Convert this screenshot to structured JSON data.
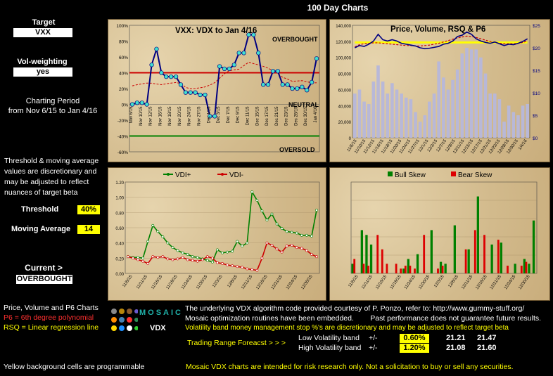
{
  "page_title": "100 Day Charts",
  "sidebar": {
    "target_label": "Target",
    "target_value": "VXX",
    "vw_label": "Vol-weighting",
    "vw_value": "yes",
    "period_title": "Charting Period",
    "period_range": "from Nov 6/15 to Jan 4/16",
    "threshold_note": "Threshold & moving average values are discretionary and may be adjusted to reflect nuances of target beta",
    "threshold_label": "Threshold",
    "threshold_value": "40%",
    "ma_label": "Moving Average",
    "ma_value": "14",
    "current_label": "Current >",
    "current_value": "OVERBOUGHT",
    "legend_line1": "Price, Volume and P6 Charts",
    "legend_line2": "P6 = 6th degree polynomial",
    "legend_line3": "RSQ = Linear regression line",
    "yellow_note": "Yellow background cells are programmable"
  },
  "logo": {
    "word": "MOSAIC",
    "sub": "VDX"
  },
  "footer": {
    "line1": "The underlying VDX algorithm code provided courtesy of P. Ponzo, refer to:  http://www.gummy-stuff.org/",
    "line2": "Mosaic optimization routines have been embedded.        Past performance does not guarantee future results.",
    "line3": "Volatility band money management stop %'s are discretionary and may be adjusted to reflect target beta",
    "forecast_label": "Trading Range Foreacst > > >",
    "low_label": "Low Volatility band",
    "low_pm": "+/-",
    "low_pct": "0.60%",
    "low_a": "21.21",
    "low_b": "21.47",
    "high_label": "High Volatility band",
    "high_pm": "+/-",
    "high_pct": "1.20%",
    "high_a": "21.08",
    "high_b": "21.60",
    "disclaimer": "Mosaic VDX charts are intended for risk research only.  Not a solicitation to buy or sell any securities."
  },
  "colors": {
    "accent": "#ffff00",
    "red": "#cc0000",
    "green": "#008000",
    "navy": "#000080"
  },
  "chart_data": [
    {
      "type": "line",
      "title": "VXX:   VDX to Jan 4/16",
      "annotations": [
        "OVERBOUGHT",
        "NEUTRAL",
        "OVERSOLD"
      ],
      "ylim": [
        -60,
        100
      ],
      "yticks": [
        "100%",
        "80%",
        "60%",
        "40%",
        "20%",
        "0%",
        "-20%",
        "-40%",
        "-60%"
      ],
      "xticks": [
        "Nov 6/15",
        "Nov 10/15",
        "Nov 12/15",
        "Nov 16/15",
        "Nov 18/15",
        "Nov 20/15",
        "Nov 24/15",
        "Nov 27/15",
        "Dec 1/15",
        "Dec 3/15",
        "Dec 7/15",
        "Dec 9/15",
        "Dec 11/15",
        "Dec 15/15",
        "Dec 17/15",
        "Dec 21/15",
        "Dec 23/15",
        "Dec 28/15",
        "Dec 30/15",
        "Jan 4/16"
      ],
      "series": [
        {
          "name": "VDX",
          "values": [
            0,
            2,
            2,
            0,
            50,
            70,
            40,
            35,
            35,
            35,
            25,
            15,
            15,
            15,
            12,
            12,
            -15,
            -15,
            48,
            45,
            45,
            50,
            65,
            65,
            88,
            88,
            65,
            25,
            25,
            42,
            42,
            25,
            25,
            20,
            20,
            22,
            18,
            28,
            58
          ]
        }
      ],
      "threshold_lines": [
        40,
        -40
      ]
    },
    {
      "type": "bar",
      "title": "Price, Volume, RSQ & P6",
      "left_ticks": [
        "140,000",
        "120,000",
        "100,000",
        "80,000",
        "60,000",
        "40,000",
        "20,000",
        "0"
      ],
      "right_ticks": [
        "$25",
        "$20",
        "$15",
        "$10",
        "$5",
        "$0"
      ],
      "xticks": [
        "11/6/15",
        "11/10/15",
        "11/12/15",
        "11/16/15",
        "11/18/15",
        "11/20/15",
        "11/24/15",
        "11/27/15",
        "12/1/15",
        "12/3/15",
        "12/7/15",
        "12/9/15",
        "12/11/15",
        "12/15/15",
        "12/17/15",
        "12/21/15",
        "12/23/15",
        "12/28/15",
        "12/30/15",
        "1/4/16"
      ],
      "volume": [
        55000,
        60000,
        45000,
        42000,
        70000,
        90000,
        70000,
        55000,
        68000,
        60000,
        55000,
        50000,
        48000,
        32000,
        20000,
        28000,
        45000,
        55000,
        95000,
        75000,
        60000,
        72000,
        85000,
        105000,
        112000,
        110000,
        110000,
        100000,
        80000,
        55000,
        55000,
        48000,
        20000,
        40000,
        32000,
        28000,
        40000,
        42000
      ],
      "price": [
        20.0,
        20.5,
        20.3,
        20.8,
        21.5,
        23.0,
        21.8,
        21.5,
        21.8,
        21.5,
        21.0,
        20.8,
        20.6,
        20.4,
        20.0,
        19.8,
        19.9,
        20.1,
        20.3,
        20.8,
        21.0,
        21.5,
        22.5,
        22.8,
        23.5,
        23.0,
        22.0,
        21.5,
        21.2,
        21.0,
        21.3,
        20.9,
        20.5,
        20.8,
        20.7,
        21.0,
        21.4,
        22.0
      ],
      "p6": [
        20.2,
        20.7,
        20.9,
        21.0,
        21.1,
        21.1,
        21.0,
        20.9,
        20.8,
        20.7,
        20.6,
        20.5,
        20.5,
        20.4,
        20.4,
        20.5,
        20.6,
        20.8,
        21.0,
        21.3,
        21.6,
        21.9,
        22.2,
        22.4,
        22.6,
        22.5,
        22.3,
        22.0,
        21.7,
        21.4,
        21.2,
        21.0,
        20.9,
        20.9,
        20.9,
        21.0,
        21.2,
        21.5
      ],
      "rsq": [
        21.2,
        21.2,
        21.2,
        21.2,
        21.2,
        21.2,
        21.2,
        21.2,
        21.2,
        21.2,
        21.2,
        21.2,
        21.2,
        21.2,
        21.2,
        21.2,
        21.2,
        21.2,
        21.2,
        21.2,
        21.2,
        21.2,
        21.2,
        21.2,
        21.2,
        21.2,
        21.2,
        21.2,
        21.2,
        21.2,
        21.2,
        21.2,
        21.2,
        21.2,
        21.2,
        21.2,
        21.2,
        21.2
      ]
    },
    {
      "type": "line",
      "legend": [
        "VDI+",
        "VDI-"
      ],
      "ylim": [
        0,
        1.2
      ],
      "yticks": [
        "1.20",
        "1.00",
        "0.80",
        "0.60",
        "0.40",
        "0.20",
        "0.00"
      ],
      "xticks": [
        "11/6/15",
        "11/11/15",
        "11/16/15",
        "11/19/15",
        "11/24/15",
        "11/30/15",
        "12/3/15",
        "12/8/15",
        "12/11/15",
        "12/16/15",
        "12/21/15",
        "12/24/15",
        "12/30/15"
      ],
      "series": [
        {
          "name": "VDI+",
          "values": [
            0.22,
            0.21,
            0.21,
            0.2,
            0.42,
            0.63,
            0.55,
            0.48,
            0.4,
            0.34,
            0.3,
            0.27,
            0.25,
            0.22,
            0.21,
            0.19,
            0.17,
            0.15,
            0.31,
            0.27,
            0.28,
            0.29,
            0.42,
            0.36,
            0.4,
            1.07,
            0.96,
            0.82,
            0.7,
            0.78,
            0.65,
            0.59,
            0.55,
            0.54,
            0.53,
            0.5,
            0.5,
            0.49,
            0.83
          ]
        },
        {
          "name": "VDI-",
          "values": [
            0.22,
            0.2,
            0.18,
            0.16,
            0.13,
            0.22,
            0.21,
            0.22,
            0.19,
            0.18,
            0.19,
            0.21,
            0.18,
            0.17,
            0.16,
            0.18,
            0.22,
            0.2,
            0.14,
            0.13,
            0.11,
            0.1,
            0.09,
            0.08,
            0.06,
            0.05,
            0.04,
            0.2,
            0.4,
            0.37,
            0.32,
            0.28,
            0.36,
            0.37,
            0.34,
            0.33,
            0.3,
            0.25,
            0.22
          ]
        }
      ]
    },
    {
      "type": "bar",
      "legend": [
        "Bull Skew",
        "Bear Skew"
      ],
      "xticks": [
        "11/6/15",
        "11/11/15",
        "11/16/15",
        "11/19/15",
        "11/24/15",
        "11/30/15",
        "12/3/15",
        "12/8/15",
        "12/11/15",
        "12/16/15",
        "12/21/15",
        "12/24/15",
        "12/30/15"
      ],
      "bull": [
        0.1,
        0,
        0.45,
        0.4,
        0.3,
        0,
        0,
        0,
        0,
        0,
        0,
        0.05,
        0.15,
        0,
        0.2,
        0,
        0,
        0.45,
        0,
        0.12,
        0.1,
        0,
        0.5,
        0,
        0,
        0.25,
        0,
        0.8,
        0,
        0,
        0.3,
        0,
        0.32,
        0,
        0,
        0.1,
        0,
        0.15,
        0.1,
        0.55
      ],
      "bear": [
        0.15,
        0,
        0.1,
        0.08,
        0,
        0.4,
        0.25,
        0.1,
        0,
        0.1,
        0.05,
        0.08,
        0.08,
        0.05,
        0,
        0.4,
        0,
        0,
        0.05,
        0.08,
        0,
        0,
        0,
        0,
        0.25,
        0,
        0.45,
        0,
        0.4,
        0,
        0,
        0.35,
        0,
        0.08,
        0,
        0,
        0.08,
        0.12,
        0,
        0
      ]
    }
  ]
}
